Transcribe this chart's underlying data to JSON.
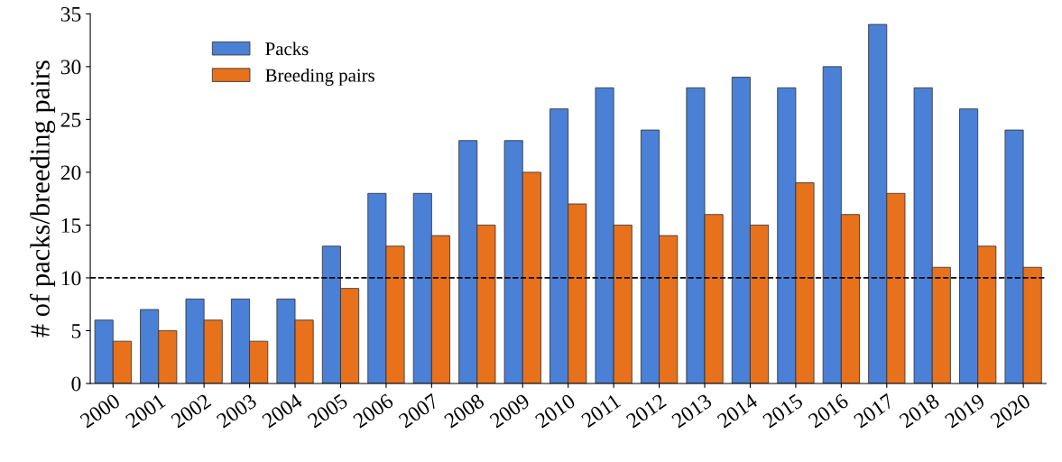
{
  "chart_data": {
    "type": "bar",
    "ylabel": "# of packs/breeding pairs",
    "categories": [
      "2000",
      "2001",
      "2002",
      "2003",
      "2004",
      "2005",
      "2006",
      "2007",
      "2008",
      "2009",
      "2010",
      "2011",
      "2012",
      "2013",
      "2014",
      "2015",
      "2016",
      "2017",
      "2018",
      "2019",
      "2020"
    ],
    "series": [
      {
        "name": "Packs",
        "color": "#4a80d6",
        "values": [
          6,
          7,
          8,
          8,
          8,
          13,
          18,
          18,
          23,
          23,
          26,
          28,
          24,
          28,
          29,
          28,
          30,
          34,
          28,
          26,
          24
        ]
      },
      {
        "name": "Breeding pairs",
        "color": "#e8711c",
        "values": [
          4,
          5,
          6,
          4,
          6,
          9,
          13,
          14,
          15,
          20,
          17,
          15,
          14,
          16,
          15,
          19,
          16,
          18,
          11,
          13,
          11
        ]
      }
    ],
    "ylim": [
      0,
      35
    ],
    "yticks": [
      0,
      5,
      10,
      15,
      20,
      25,
      30,
      35
    ],
    "ref_lines": [
      {
        "axis": "y",
        "value": 10,
        "color": "#000000",
        "line_style": "dashed"
      }
    ],
    "grid": false,
    "legend": "top left"
  }
}
